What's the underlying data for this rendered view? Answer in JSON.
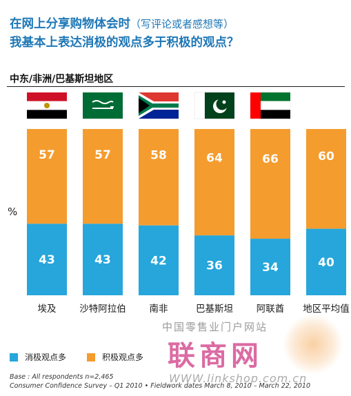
{
  "title": {
    "line1_main": "在网上分享购物体会时",
    "line1_paren": "（写评论或者感想等）",
    "line2": "我基本上表达消极的观点多于积极的观点？"
  },
  "region": "中东/非洲/巴基斯坦地区",
  "ylabel": "%",
  "colors": {
    "negative": "#26a6db",
    "positive": "#f49c2e",
    "title": "#1e77b6"
  },
  "chart_data": {
    "type": "bar",
    "stacked": true,
    "categories": [
      "埃及",
      "沙特阿拉伯",
      "南非",
      "巴基斯坦",
      "阿联酋",
      "地区平均值"
    ],
    "series": [
      {
        "name": "消极观点多",
        "values": [
          43,
          43,
          42,
          36,
          34,
          40
        ]
      },
      {
        "name": "积极观点多",
        "values": [
          57,
          57,
          58,
          64,
          66,
          60
        ]
      }
    ],
    "ylabel": "%",
    "ylim": [
      0,
      100
    ],
    "legend": "bottom-left",
    "grid": false
  },
  "flags": [
    "egypt-flag",
    "saudi-flag",
    "south-africa-flag",
    "pakistan-flag",
    "uae-flag",
    ""
  ],
  "legend": [
    {
      "label": "消极观点多",
      "color": "#26a6db"
    },
    {
      "label": "积极观点多",
      "color": "#f49c2e"
    }
  ],
  "footnote": {
    "line1": "Base : All respondents n=2,465",
    "line2": "Consumer Confidence Survey – Q1 2010 • Fieldwork dates March 8, 2010 – March 22, 2010"
  },
  "watermark": {
    "top": "中国零售业门户网站",
    "big": "联商网",
    "url": "WWW.linkshop.com.cn"
  }
}
